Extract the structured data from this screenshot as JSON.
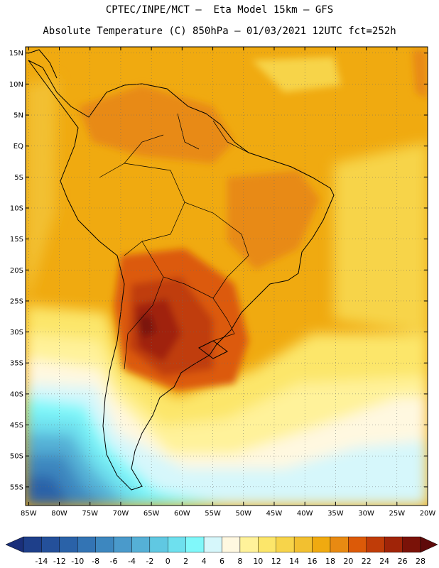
{
  "header": {
    "line1": "CPTEC/INPE/MCT –  Eta Model 15km – GFS",
    "line2": "Absolute Temperature (C) 850hPa – 01/03/2021 12UTC fct=252h"
  },
  "map": {
    "lat_labels": [
      "15N",
      "10N",
      "5N",
      "EQ",
      "5S",
      "10S",
      "15S",
      "20S",
      "25S",
      "30S",
      "35S",
      "40S",
      "45S",
      "50S",
      "55S"
    ],
    "lon_labels": [
      "85W",
      "80W",
      "75W",
      "70W",
      "65W",
      "60W",
      "55W",
      "50W",
      "45W",
      "40W",
      "35W",
      "30W",
      "25W",
      "20W"
    ],
    "lat_range": [
      -58,
      16
    ],
    "lon_range": [
      -85.5,
      -20
    ]
  },
  "colorbar": {
    "labels": [
      "-14",
      "-12",
      "-10",
      "-8",
      "-6",
      "-4",
      "-2",
      "0",
      "2",
      "4",
      "6",
      "8",
      "10",
      "12",
      "14",
      "16",
      "18",
      "20",
      "22",
      "24",
      "26",
      "28"
    ],
    "colors": [
      "#1e3f8a",
      "#24509a",
      "#2a62a8",
      "#3374b4",
      "#3d87bf",
      "#4a9acb",
      "#55b0d6",
      "#60c8e2",
      "#6ee0ee",
      "#80f8fa",
      "#d6f7fb",
      "#fff8e0",
      "#fff29a",
      "#fce66a",
      "#f7d44a",
      "#f2c030",
      "#f0aa10",
      "#e88a12",
      "#dc5a08",
      "#c03c08",
      "#a02408",
      "#7a1208"
    ],
    "left_arrow_color": "#1a2f7a",
    "right_arrow_color": "#5e0a0a"
  }
}
